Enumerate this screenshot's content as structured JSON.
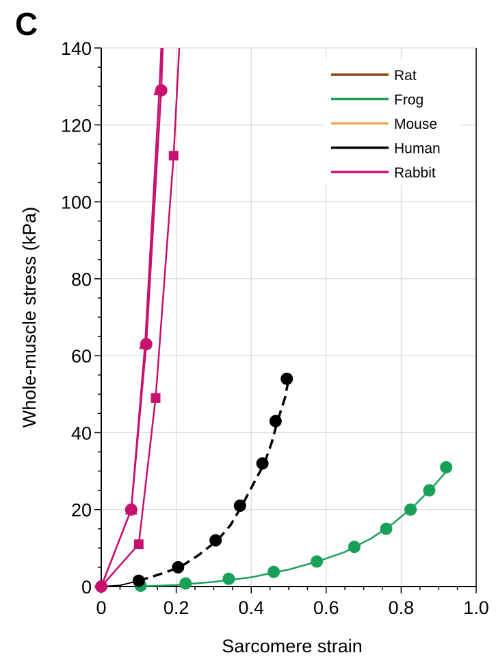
{
  "panel_label": "C",
  "chart_data": {
    "type": "line",
    "xlabel": "Sarcomere strain",
    "ylabel": "Whole-muscle stress (kPa)",
    "xlim": [
      0,
      1.0
    ],
    "ylim": [
      0,
      140
    ],
    "xticks": [
      0,
      0.2,
      0.4,
      0.6,
      0.8,
      1.0
    ],
    "xtick_labels": [
      "0",
      "0.2",
      "0.4",
      "0.6",
      "0.8",
      "1.0"
    ],
    "yticks": [
      0,
      20,
      40,
      60,
      80,
      100,
      120,
      140
    ],
    "ytick_labels": [
      "0",
      "20",
      "40",
      "60",
      "80",
      "100",
      "120",
      "140"
    ],
    "grid": true,
    "legend_position": "top-right",
    "legend": [
      {
        "name": "Rat",
        "color": "#8B4513"
      },
      {
        "name": "Frog",
        "color": "#18A058"
      },
      {
        "name": "Mouse",
        "color": "#F7A95A"
      },
      {
        "name": "Human",
        "color": "#000000"
      },
      {
        "name": "Rabbit",
        "color": "#C8106E"
      }
    ],
    "series": [
      {
        "name": "Frog",
        "color": "#18A058",
        "dashed": false,
        "marker": "circle",
        "fit": [
          [
            0.1,
            0
          ],
          [
            0.2,
            0.4
          ],
          [
            0.3,
            1.2
          ],
          [
            0.4,
            2.4
          ],
          [
            0.5,
            4.4
          ],
          [
            0.58,
            6.6
          ],
          [
            0.65,
            9.0
          ],
          [
            0.72,
            12.5
          ],
          [
            0.78,
            16.5
          ],
          [
            0.84,
            21.5
          ],
          [
            0.89,
            26.5
          ],
          [
            0.93,
            31
          ]
        ],
        "points": [
          [
            0.105,
            0.2
          ],
          [
            0.225,
            0.8
          ],
          [
            0.34,
            2.0
          ],
          [
            0.46,
            3.8
          ],
          [
            0.575,
            6.5
          ],
          [
            0.675,
            10.3
          ],
          [
            0.76,
            15.0
          ],
          [
            0.825,
            20.0
          ],
          [
            0.875,
            25.0
          ],
          [
            0.92,
            31.0
          ]
        ]
      },
      {
        "name": "Human",
        "color": "#000000",
        "dashed": true,
        "marker": "circle",
        "fit": [
          [
            0.1,
            1.5
          ],
          [
            0.15,
            3.0
          ],
          [
            0.21,
            5.0
          ],
          [
            0.26,
            8.2
          ],
          [
            0.31,
            12.0
          ],
          [
            0.345,
            16.0
          ],
          [
            0.375,
            21.0
          ],
          [
            0.405,
            26.5
          ],
          [
            0.435,
            32.0
          ],
          [
            0.455,
            37.5
          ],
          [
            0.47,
            43.0
          ],
          [
            0.49,
            49.0
          ],
          [
            0.5,
            54.0
          ]
        ],
        "extension": [
          [
            0.0,
            0
          ],
          [
            0.05,
            0.3
          ],
          [
            0.1,
            1.5
          ]
        ],
        "points": [
          [
            0.1,
            1.5
          ],
          [
            0.205,
            5.0
          ],
          [
            0.305,
            12.0
          ],
          [
            0.37,
            21.0
          ],
          [
            0.43,
            32.0
          ],
          [
            0.465,
            43.0
          ],
          [
            0.495,
            54.0
          ]
        ]
      },
      {
        "name": "Rabbit",
        "color": "#C8106E",
        "dashed": false,
        "marker": "circle",
        "fit": [
          [
            0,
            0
          ],
          [
            0.08,
            20
          ],
          [
            0.12,
            63
          ],
          [
            0.16,
            129
          ],
          [
            0.164,
            140
          ]
        ],
        "points": [
          [
            0,
            0
          ],
          [
            0.08,
            20
          ],
          [
            0.12,
            63
          ],
          [
            0.16,
            129
          ]
        ]
      },
      {
        "name": "Rabbit",
        "color": "#C8106E",
        "dashed": false,
        "marker": "triangle",
        "fit": [
          [
            0,
            0
          ],
          [
            0.08,
            20
          ],
          [
            0.117,
            63
          ],
          [
            0.155,
            129
          ],
          [
            0.16,
            140
          ]
        ],
        "points": [
          [
            0.08,
            20
          ],
          [
            0.117,
            63
          ],
          [
            0.155,
            129
          ]
        ]
      },
      {
        "name": "Rabbit",
        "color": "#C8106E",
        "dashed": false,
        "marker": "square",
        "fit": [
          [
            0,
            0
          ],
          [
            0.1,
            11
          ],
          [
            0.145,
            49
          ],
          [
            0.193,
            112
          ],
          [
            0.208,
            140
          ]
        ],
        "points": [
          [
            0.1,
            11
          ],
          [
            0.145,
            49
          ],
          [
            0.193,
            112
          ]
        ]
      }
    ]
  }
}
